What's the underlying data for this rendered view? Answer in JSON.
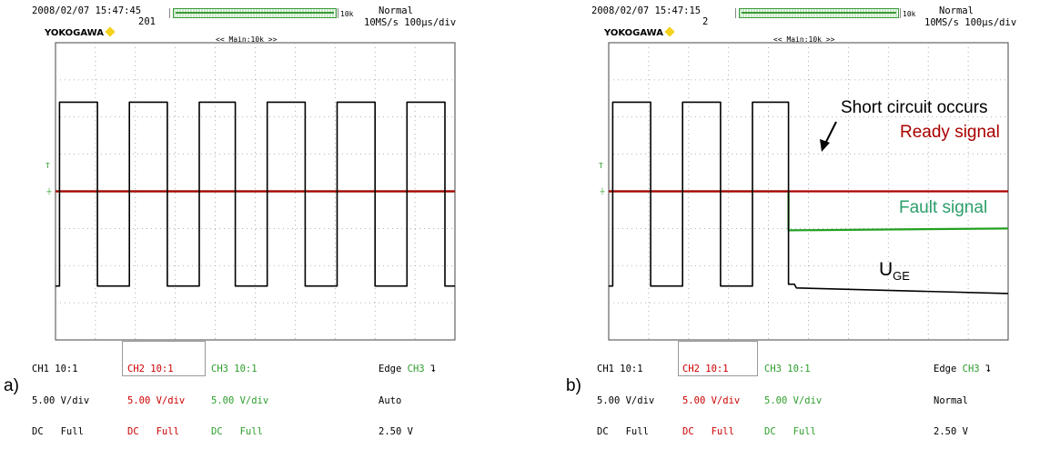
{
  "panels": [
    {
      "id": "a",
      "tag": "a)",
      "datetime": "2008/02/07 15:47:45",
      "brand": "YOKOGAWA",
      "acq_count": "201",
      "zoom_label": "10k",
      "trigger_mode_top": "Normal",
      "sample_rate": "10MS/s 100µs/div",
      "main_label": "<< Main:10k >>",
      "ch1": {
        "name": "CH1 10:1",
        "scale": "5.00 V/div",
        "coupling": "DC   Full"
      },
      "ch2": {
        "name": "CH2 10:1",
        "scale": "5.00 V/div",
        "coupling": "DC   Full"
      },
      "ch3": {
        "name": "CH3 10:1",
        "scale": "5.00 V/div",
        "coupling": "DC   Full"
      },
      "trigger": {
        "type": "Edge",
        "source": "CH3",
        "slope_symbol": "⮧",
        "mode": "Auto",
        "level": "2.50 V"
      },
      "marker_t": "T",
      "annotations": {}
    },
    {
      "id": "b",
      "tag": "b)",
      "datetime": "2008/02/07 15:47:15",
      "brand": "YOKOGAWA",
      "acq_count": "2",
      "zoom_label": "10k",
      "trigger_mode_top": "Normal",
      "sample_rate": "10MS/s 100µs/div",
      "main_label": "<< Main:10k >>",
      "ch1": {
        "name": "CH1 10:1",
        "scale": "5.00 V/div",
        "coupling": "DC   Full"
      },
      "ch2": {
        "name": "CH2 10:1",
        "scale": "5.00 V/div",
        "coupling": "DC   Full"
      },
      "ch3": {
        "name": "CH3 10:1",
        "scale": "5.00 V/div",
        "coupling": "DC   Full"
      },
      "trigger": {
        "type": "Edge",
        "source": "CH3",
        "slope_symbol": "⮧",
        "mode": "Normal",
        "level": "2.50 V"
      },
      "marker_t": "T",
      "annotations": {
        "short_circuit": "Short circuit occurs",
        "ready": "Ready signal",
        "fault": "Fault signal",
        "uge_main": "U",
        "uge_sub": "GE"
      }
    }
  ],
  "chart_data": [
    {
      "type": "line",
      "panel": "a",
      "x_unit": "div",
      "y_unit": "div",
      "xlim": [
        0,
        10
      ],
      "ylim": [
        -4,
        4
      ],
      "grid": true,
      "series": [
        {
          "channel": "CH1",
          "color": "#000000",
          "x": [
            0,
            0.1,
            0.1,
            1.05,
            1.05,
            1.85,
            1.85,
            2.8,
            2.8,
            3.6,
            3.6,
            4.5,
            4.5,
            5.3,
            5.3,
            6.25,
            6.25,
            7.05,
            7.05,
            8.0,
            8.0,
            8.8,
            8.8,
            9.75,
            9.75,
            10
          ],
          "y": [
            -2.55,
            -2.55,
            2.4,
            2.4,
            -2.55,
            -2.55,
            2.4,
            2.4,
            -2.55,
            -2.55,
            2.4,
            2.4,
            -2.55,
            -2.55,
            2.4,
            2.4,
            -2.55,
            -2.55,
            2.4,
            2.4,
            -2.55,
            -2.55,
            2.4,
            2.4,
            -2.55,
            -2.55
          ]
        },
        {
          "channel": "CH2",
          "color": "#aa0000",
          "x": [
            0,
            10
          ],
          "y": [
            0,
            0
          ]
        },
        {
          "channel": "CH3",
          "color": "#22a022",
          "x": [
            0,
            10
          ],
          "y": [
            0,
            0
          ]
        }
      ]
    },
    {
      "type": "line",
      "panel": "b",
      "x_unit": "div",
      "y_unit": "div",
      "xlim": [
        0,
        10
      ],
      "ylim": [
        -4,
        4
      ],
      "grid": true,
      "series": [
        {
          "channel": "CH1",
          "color": "#000000",
          "x": [
            0,
            0.1,
            0.1,
            1.05,
            1.05,
            1.85,
            1.85,
            2.8,
            2.8,
            3.6,
            3.6,
            4.5,
            4.5,
            4.65,
            4.7,
            10
          ],
          "y": [
            -2.55,
            -2.55,
            2.4,
            2.4,
            -2.55,
            -2.55,
            2.4,
            2.4,
            -2.55,
            -2.55,
            2.4,
            2.4,
            -2.5,
            -2.5,
            -2.6,
            -2.75
          ]
        },
        {
          "channel": "CH2",
          "color": "#aa0000",
          "x": [
            0,
            4.5,
            4.5,
            10
          ],
          "y": [
            0,
            0,
            0,
            0
          ]
        },
        {
          "channel": "CH3",
          "color": "#22a022",
          "x": [
            0,
            4.5,
            4.5,
            10
          ],
          "y": [
            0,
            0,
            -1.05,
            -1.0
          ]
        }
      ]
    }
  ]
}
